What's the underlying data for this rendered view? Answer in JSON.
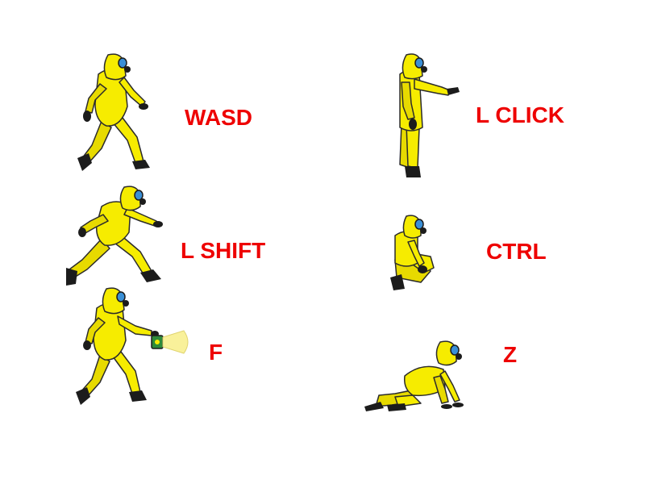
{
  "controls": {
    "walk": {
      "key": "WASD",
      "figure": "walking-figure-icon"
    },
    "shoot": {
      "key": "L CLICK",
      "figure": "pointing-figure-icon"
    },
    "run": {
      "key": "L SHIFT",
      "figure": "running-figure-icon"
    },
    "crouch": {
      "key": "CTRL",
      "figure": "crouching-figure-icon"
    },
    "light": {
      "key": "F",
      "figure": "flashlight-figure-icon"
    },
    "crawl": {
      "key": "Z",
      "figure": "crawling-figure-icon"
    }
  },
  "colors": {
    "label": "#ee0000",
    "suit": "#f6ec00",
    "suit_shadow": "#c8b800",
    "outline": "#2b2b2b",
    "boot": "#1c1c1c",
    "visor": "#3a8fd6",
    "lamp": "#2e8b3a",
    "beam": "#f9f19a"
  }
}
